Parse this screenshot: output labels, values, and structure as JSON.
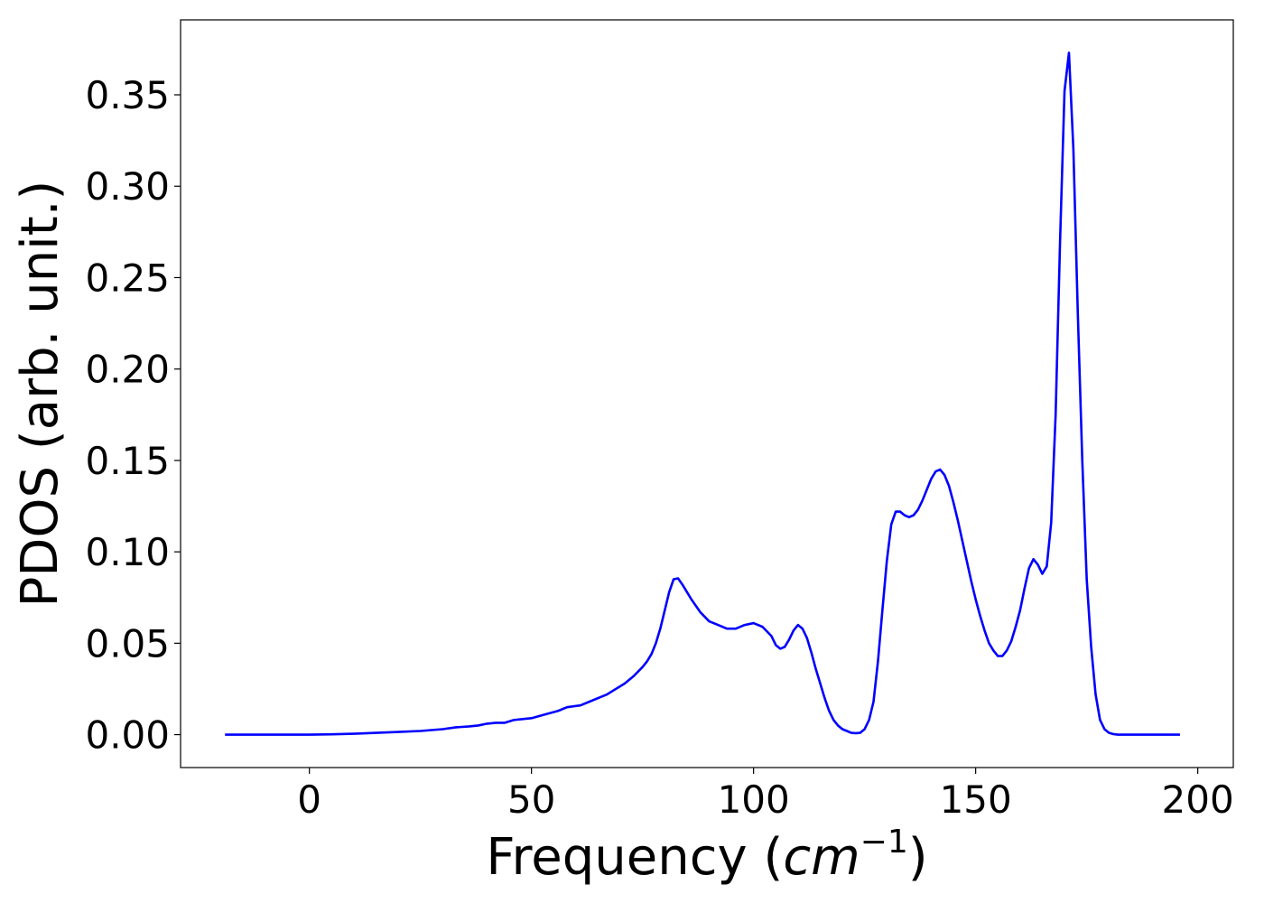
{
  "chart_data": {
    "type": "line",
    "title": "",
    "xlabel": "Frequency (",
    "xlabel_math": "cm",
    "xlabel_sup": "−1",
    "xlabel_close": ")",
    "ylabel": "PDOS (arb. unit.)",
    "xlim": [
      -29,
      208
    ],
    "ylim": [
      -0.018,
      0.391
    ],
    "x_ticks": [
      0,
      50,
      100,
      150,
      200
    ],
    "x_tick_labels": [
      "0",
      "50",
      "100",
      "150",
      "200"
    ],
    "y_ticks": [
      0.0,
      0.05,
      0.1,
      0.15,
      0.2,
      0.25,
      0.3,
      0.35
    ],
    "y_tick_labels": [
      "0.00",
      "0.05",
      "0.10",
      "0.15",
      "0.20",
      "0.25",
      "0.30",
      "0.35"
    ],
    "grid": false,
    "series": [
      {
        "color": "#0000ff",
        "x": [
          -19,
          0,
          5,
          10,
          15,
          20,
          25,
          30,
          33,
          36,
          38,
          40,
          42,
          44,
          46,
          48,
          50,
          53,
          56,
          58,
          61,
          63,
          65,
          67,
          69,
          71,
          73,
          75,
          76,
          77,
          78,
          79,
          80,
          81,
          82,
          83,
          84,
          86,
          88,
          90,
          92,
          94,
          96,
          98,
          100,
          102,
          104,
          105,
          106,
          107,
          108,
          109,
          110,
          111,
          112,
          113,
          114,
          115,
          116,
          117,
          118,
          119,
          120,
          121,
          122,
          123,
          124,
          125,
          126,
          127,
          128,
          129,
          130,
          131,
          132,
          133,
          134,
          135,
          136,
          137,
          138,
          139,
          140,
          141,
          142,
          143,
          144,
          145,
          146,
          147,
          148,
          149,
          150,
          151,
          152,
          153,
          154,
          155,
          156,
          157,
          158,
          159,
          160,
          161,
          162,
          163,
          164,
          165,
          166,
          167,
          168,
          169,
          170,
          171,
          172,
          173,
          174,
          175,
          176,
          177,
          178,
          179,
          180,
          181,
          182,
          183,
          185,
          190,
          196
        ],
        "y": [
          0.0,
          0.0,
          0.0002,
          0.0005,
          0.001,
          0.0015,
          0.002,
          0.003,
          0.004,
          0.0045,
          0.005,
          0.006,
          0.0065,
          0.0065,
          0.008,
          0.0085,
          0.009,
          0.011,
          0.013,
          0.015,
          0.016,
          0.018,
          0.02,
          0.022,
          0.025,
          0.028,
          0.032,
          0.037,
          0.04,
          0.044,
          0.05,
          0.058,
          0.068,
          0.078,
          0.085,
          0.0855,
          0.082,
          0.074,
          0.067,
          0.062,
          0.06,
          0.058,
          0.058,
          0.06,
          0.061,
          0.059,
          0.054,
          0.049,
          0.047,
          0.048,
          0.052,
          0.057,
          0.06,
          0.058,
          0.053,
          0.045,
          0.036,
          0.028,
          0.02,
          0.013,
          0.008,
          0.005,
          0.003,
          0.002,
          0.001,
          0.0008,
          0.001,
          0.003,
          0.008,
          0.018,
          0.04,
          0.068,
          0.095,
          0.115,
          0.122,
          0.122,
          0.12,
          0.119,
          0.12,
          0.123,
          0.128,
          0.134,
          0.14,
          0.144,
          0.145,
          0.142,
          0.136,
          0.127,
          0.117,
          0.106,
          0.095,
          0.084,
          0.074,
          0.065,
          0.057,
          0.05,
          0.046,
          0.043,
          0.043,
          0.046,
          0.051,
          0.059,
          0.068,
          0.08,
          0.091,
          0.096,
          0.093,
          0.088,
          0.092,
          0.116,
          0.175,
          0.27,
          0.352,
          0.373,
          0.32,
          0.23,
          0.15,
          0.085,
          0.048,
          0.022,
          0.008,
          0.003,
          0.001,
          0.0003,
          0.0,
          0.0,
          0.0,
          0.0,
          0.0
        ]
      }
    ]
  }
}
